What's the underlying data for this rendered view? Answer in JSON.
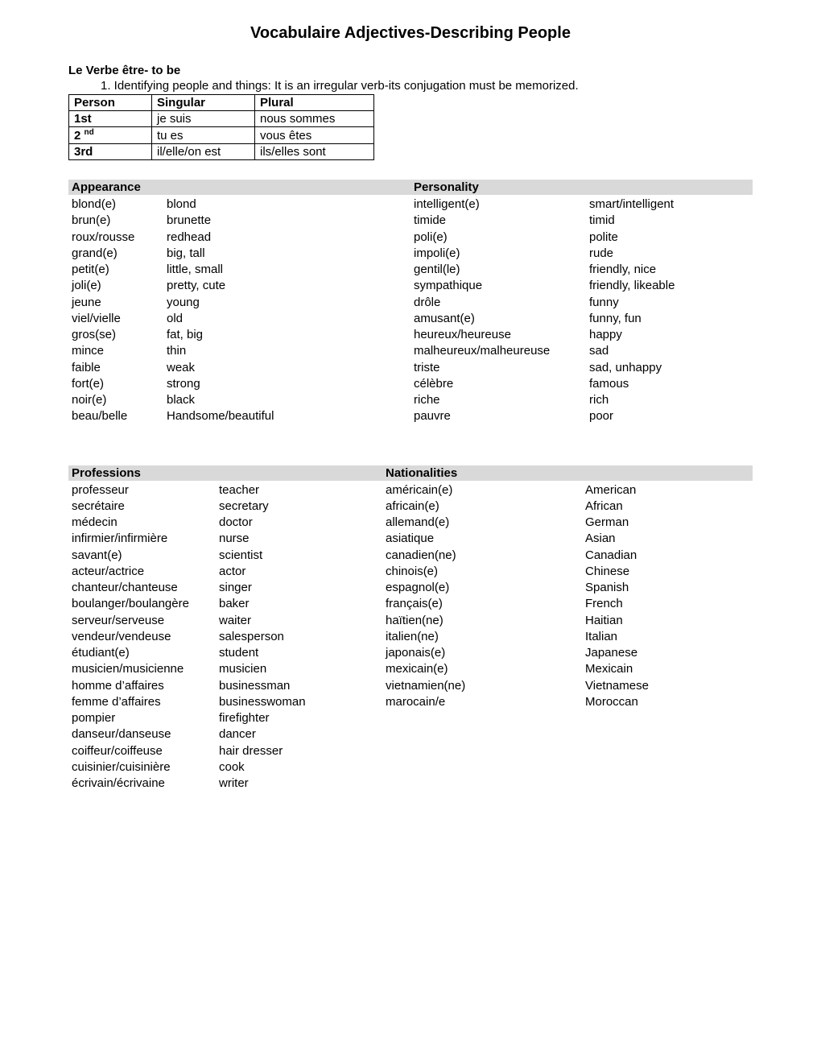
{
  "title": "Vocabulaire Adjectives-Describing People",
  "verb_heading": "Le Verbe être- to be",
  "verb_intro": "1.  Identifying people and things:  It is an irregular verb-its conjugation must be memorized.",
  "conj": {
    "headers": [
      "Person",
      "Singular",
      "Plural"
    ],
    "rows": [
      {
        "person": "1st",
        "person_html": "1st",
        "sing": "je suis",
        "plur": "nous sommes"
      },
      {
        "person": "2 nd",
        "person_html": "2 <span class=\"sup\">nd</span>",
        "sing": "tu es",
        "plur": "vous êtes"
      },
      {
        "person": "3rd",
        "person_html": "3rd",
        "sing": "il/elle/on est",
        "plur": "ils/elles sont"
      }
    ]
  },
  "appearance": {
    "header": "Appearance",
    "rows": [
      [
        "blond(e)",
        "blond"
      ],
      [
        "brun(e)",
        "brunette"
      ],
      [
        "roux/rousse",
        "redhead"
      ],
      [
        "grand(e)",
        "big, tall"
      ],
      [
        "petit(e)",
        "little, small"
      ],
      [
        "joli(e)",
        "pretty, cute"
      ],
      [
        "jeune",
        "young"
      ],
      [
        "viel/vielle",
        "old"
      ],
      [
        "gros(se)",
        "fat, big"
      ],
      [
        "mince",
        "thin"
      ],
      [
        "faible",
        "weak"
      ],
      [
        "fort(e)",
        "strong"
      ],
      [
        "noir(e)",
        "black"
      ],
      [
        "beau/belle",
        "Handsome/beautiful"
      ]
    ]
  },
  "personality": {
    "header": "Personality",
    "rows": [
      [
        "intelligent(e)",
        "smart/intelligent"
      ],
      [
        "timide",
        "timid"
      ],
      [
        "poli(e)",
        "polite"
      ],
      [
        "impoli(e)",
        "rude"
      ],
      [
        "gentil(le)",
        "friendly, nice"
      ],
      [
        "sympathique",
        "friendly, likeable"
      ],
      [
        "drôle",
        "funny"
      ],
      [
        "amusant(e)",
        "funny, fun"
      ],
      [
        "heureux/heureuse",
        "happy"
      ],
      [
        "malheureux/malheureuse",
        "sad"
      ],
      [
        "triste",
        "sad, unhappy"
      ],
      [
        "célèbre",
        "famous"
      ],
      [
        "riche",
        "rich"
      ],
      [
        "pauvre",
        "poor"
      ]
    ]
  },
  "professions": {
    "header": "Professions",
    "rows": [
      [
        "professeur",
        "teacher"
      ],
      [
        "secrétaire",
        "secretary"
      ],
      [
        "médecin",
        "doctor"
      ],
      [
        "infirmier/infirmière",
        "nurse"
      ],
      [
        "savant(e)",
        "scientist"
      ],
      [
        "acteur/actrice",
        "actor"
      ],
      [
        "chanteur/chanteuse",
        "singer"
      ],
      [
        "boulanger/boulangère",
        "baker"
      ],
      [
        "serveur/serveuse",
        "waiter"
      ],
      [
        "vendeur/vendeuse",
        "salesperson"
      ],
      [
        "étudiant(e)",
        "student"
      ],
      [
        "musicien/musicienne",
        "musicien"
      ],
      [
        "homme d’affaires",
        "businessman"
      ],
      [
        "femme d’affaires",
        "businesswoman"
      ],
      [
        "pompier",
        "firefighter"
      ],
      [
        "danseur/danseuse",
        "dancer"
      ],
      [
        "coiffeur/coiffeuse",
        "hair dresser"
      ],
      [
        "cuisinier/cuisinière",
        "cook"
      ],
      [
        "écrivain/écrivaine",
        "writer"
      ]
    ]
  },
  "nationalities": {
    "header": "Nationalities",
    "rows": [
      [
        "américain(e)",
        "American"
      ],
      [
        "africain(e)",
        "African"
      ],
      [
        "allemand(e)",
        "German"
      ],
      [
        "asiatique",
        "Asian"
      ],
      [
        "canadien(ne)",
        "Canadian"
      ],
      [
        "chinois(e)",
        "Chinese"
      ],
      [
        "espagnol(e)",
        "Spanish"
      ],
      [
        "français(e)",
        "French"
      ],
      [
        "haïtien(ne)",
        "Haitian"
      ],
      [
        "italien(ne)",
        "Italian"
      ],
      [
        "japonais(e)",
        "Japanese"
      ],
      [
        "mexicain(e)",
        "Mexicain"
      ],
      [
        "vietnamien(ne)",
        "Vietnamese"
      ],
      [
        "marocain/e",
        "Moroccan"
      ]
    ]
  }
}
